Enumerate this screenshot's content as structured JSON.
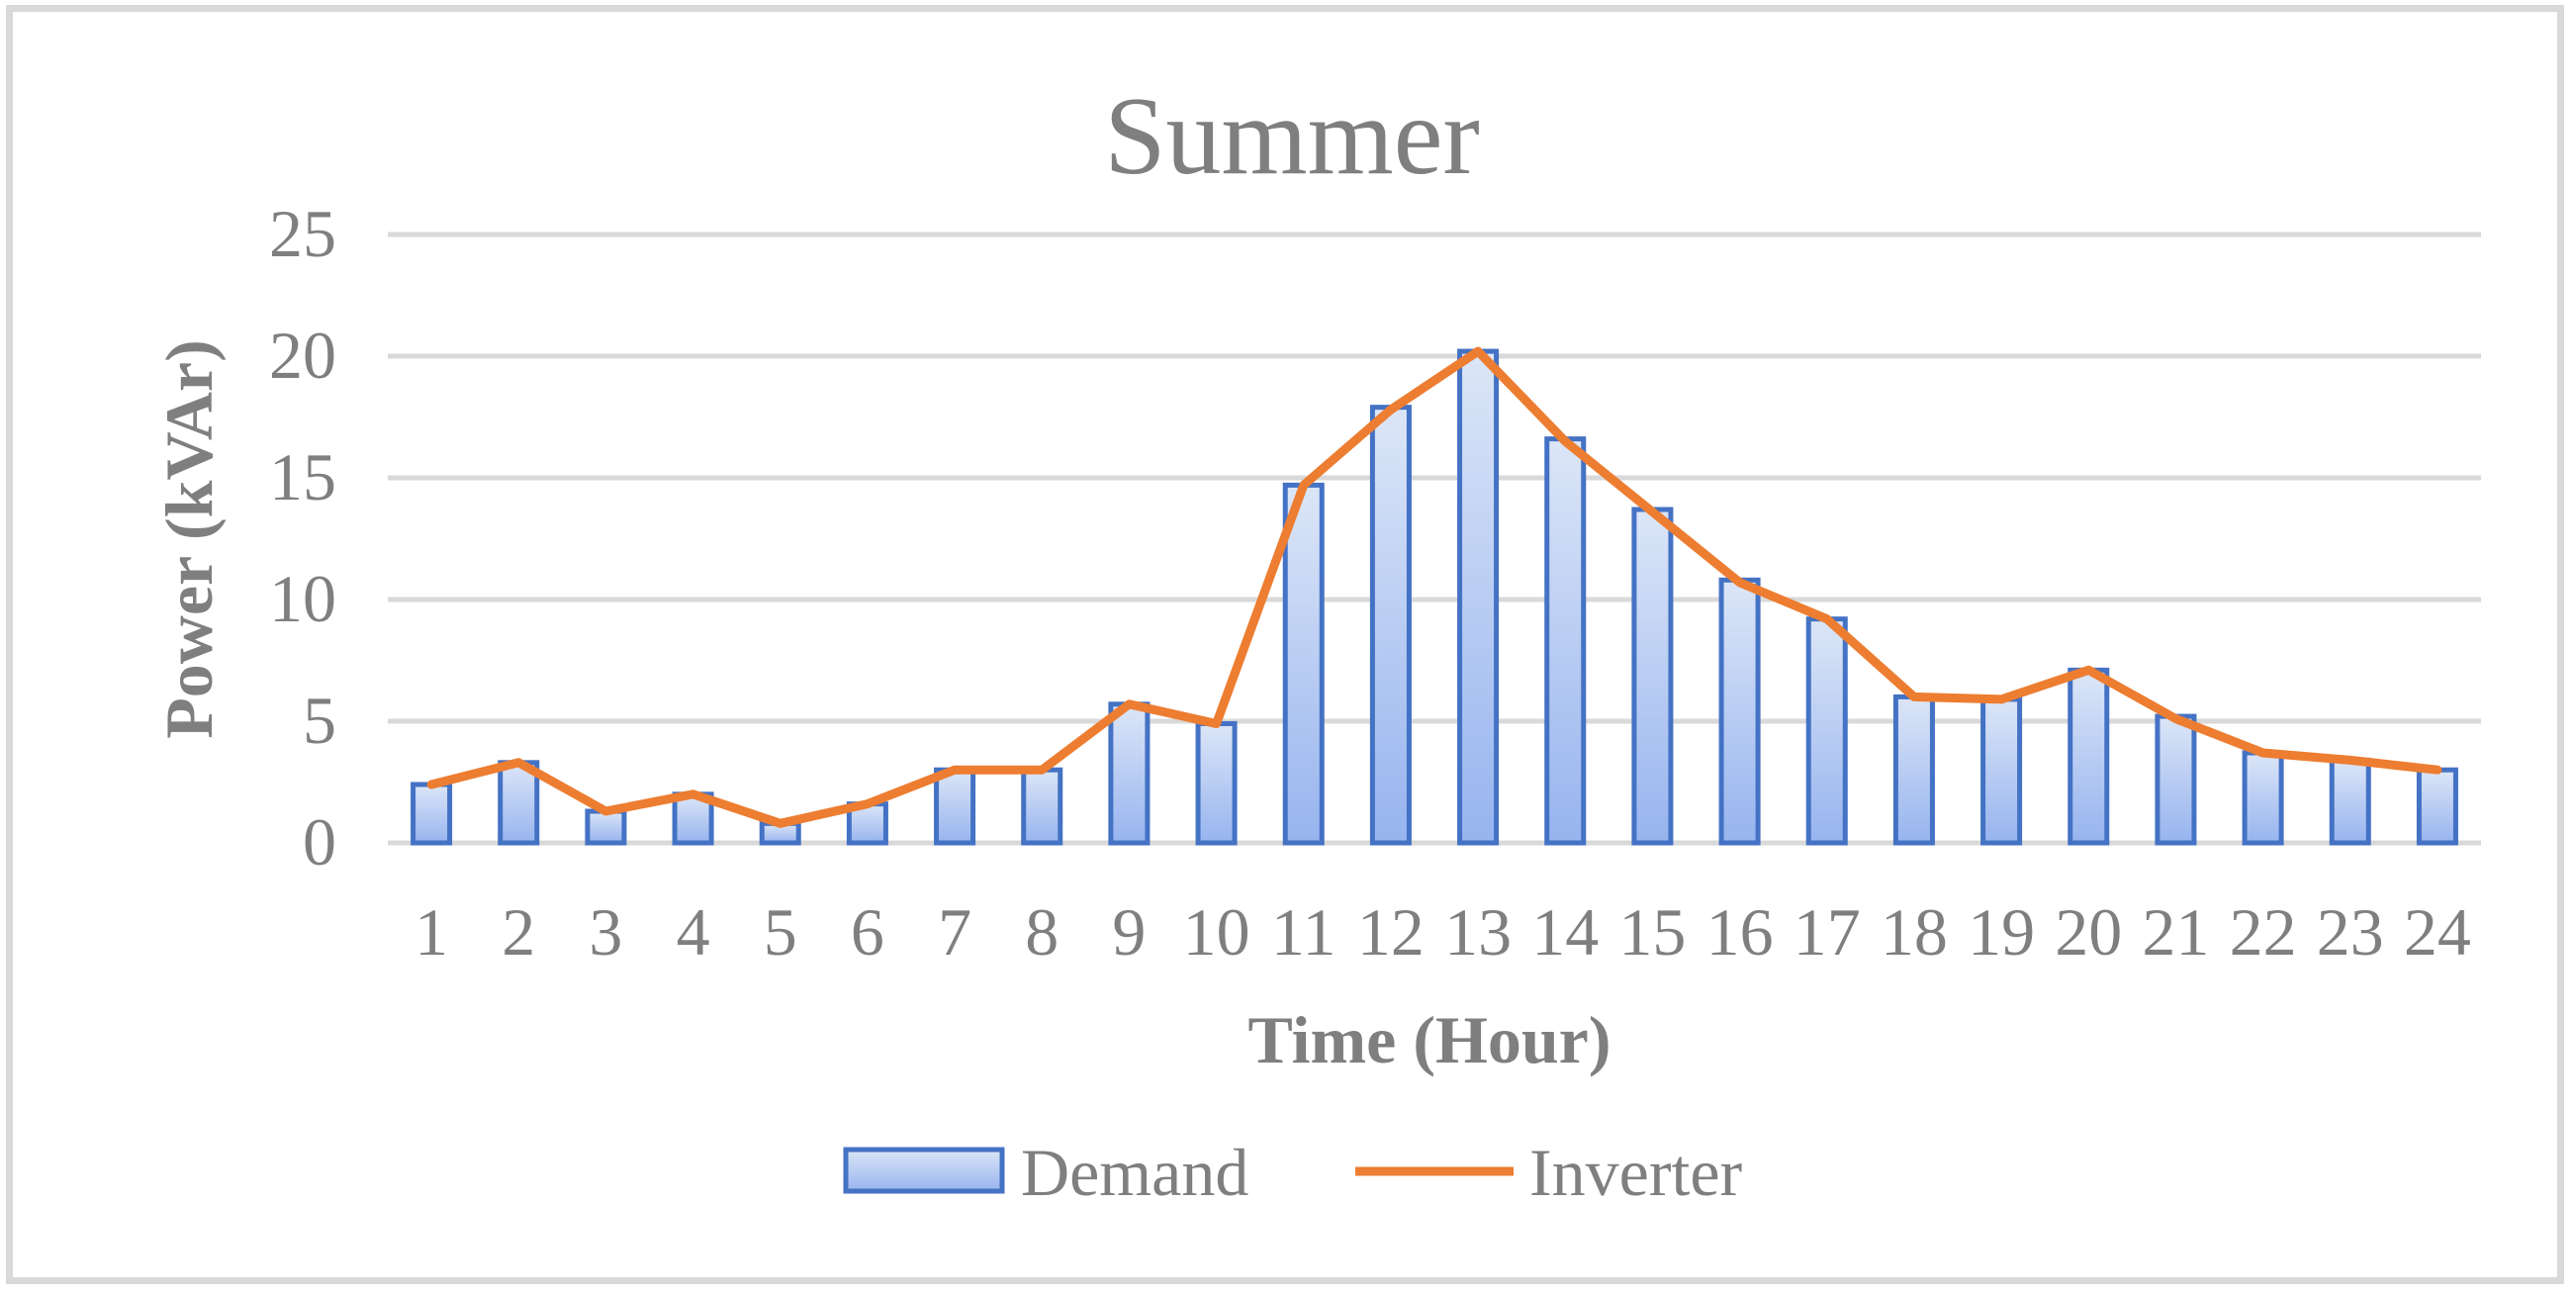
{
  "chart_data": {
    "type": "bar",
    "title": "Summer",
    "xlabel": "Time (Hour)",
    "ylabel": "Power (kVAr)",
    "ylim": [
      0,
      25
    ],
    "yticks": [
      "0",
      "5",
      "10",
      "15",
      "20",
      "25"
    ],
    "categories": [
      "1",
      "2",
      "3",
      "4",
      "5",
      "6",
      "7",
      "8",
      "9",
      "10",
      "11",
      "12",
      "13",
      "14",
      "15",
      "16",
      "17",
      "18",
      "19",
      "20",
      "21",
      "22",
      "23",
      "24"
    ],
    "grid": true,
    "legend_position": "bottom",
    "series": [
      {
        "name": "Demand",
        "type": "bar",
        "color": "#4472c4",
        "values": [
          2.4,
          3.3,
          1.3,
          2.0,
          0.8,
          1.6,
          3.0,
          3.0,
          5.7,
          4.9,
          14.7,
          17.9,
          20.2,
          16.6,
          13.7,
          10.8,
          9.2,
          6.0,
          5.9,
          7.1,
          5.2,
          3.7,
          3.4,
          3.0
        ]
      },
      {
        "name": "Inverter",
        "type": "line",
        "color": "#ed7d31",
        "values": [
          2.4,
          3.3,
          1.3,
          2.0,
          0.8,
          1.6,
          3.0,
          3.0,
          5.7,
          4.9,
          14.7,
          17.8,
          20.2,
          16.5,
          13.6,
          10.7,
          9.2,
          6.0,
          5.9,
          7.1,
          5.1,
          3.7,
          3.4,
          3.0
        ]
      }
    ]
  }
}
